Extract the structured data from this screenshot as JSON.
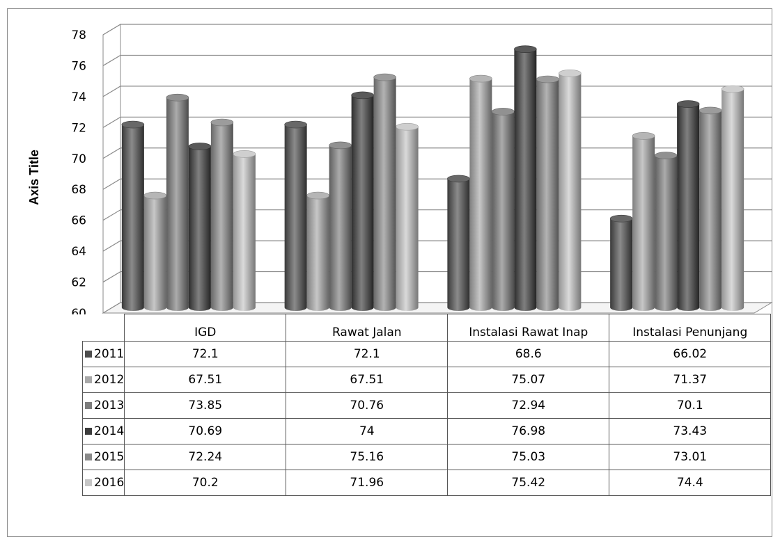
{
  "chart_data": {
    "type": "bar",
    "title": "",
    "ylabel": "Axis Title",
    "xlabel": "",
    "ylim": [
      60,
      78
    ],
    "yticks": [
      60,
      62,
      64,
      66,
      68,
      70,
      72,
      74,
      76,
      78
    ],
    "categories": [
      "IGD",
      "Rawat Jalan",
      "Instalasi Rawat Inap",
      "Instalasi Penunjang"
    ],
    "series": [
      {
        "name": "2011",
        "color": "#4d4d4d",
        "values": [
          72.1,
          72.1,
          68.6,
          66.02
        ]
      },
      {
        "name": "2012",
        "color": "#a9a9a9",
        "values": [
          67.51,
          67.51,
          75.07,
          71.37
        ]
      },
      {
        "name": "2013",
        "color": "#7d7d7d",
        "values": [
          73.85,
          70.76,
          72.94,
          70.1
        ]
      },
      {
        "name": "2014",
        "color": "#3c3c3c",
        "values": [
          70.69,
          74,
          76.98,
          73.43
        ]
      },
      {
        "name": "2015",
        "color": "#8a8a8a",
        "values": [
          72.24,
          75.16,
          75.03,
          73.01
        ]
      },
      {
        "name": "2016",
        "color": "#c6c6c6",
        "values": [
          70.2,
          71.96,
          75.42,
          74.4
        ]
      }
    ],
    "cell_labels": [
      [
        "72.1",
        "72.1",
        "68.6",
        "66.02"
      ],
      [
        "67.51",
        "67.51",
        "75.07",
        "71.37"
      ],
      [
        "73.85",
        "70.76",
        "72.94",
        "70.1"
      ],
      [
        "70.69",
        "74",
        "76.98",
        "73.43"
      ],
      [
        "72.24",
        "75.16",
        "75.03",
        "73.01"
      ],
      [
        "70.2",
        "71.96",
        "75.42",
        "74.4"
      ]
    ],
    "grid": true,
    "legend": "data-table",
    "style": "3d-cylinder"
  }
}
